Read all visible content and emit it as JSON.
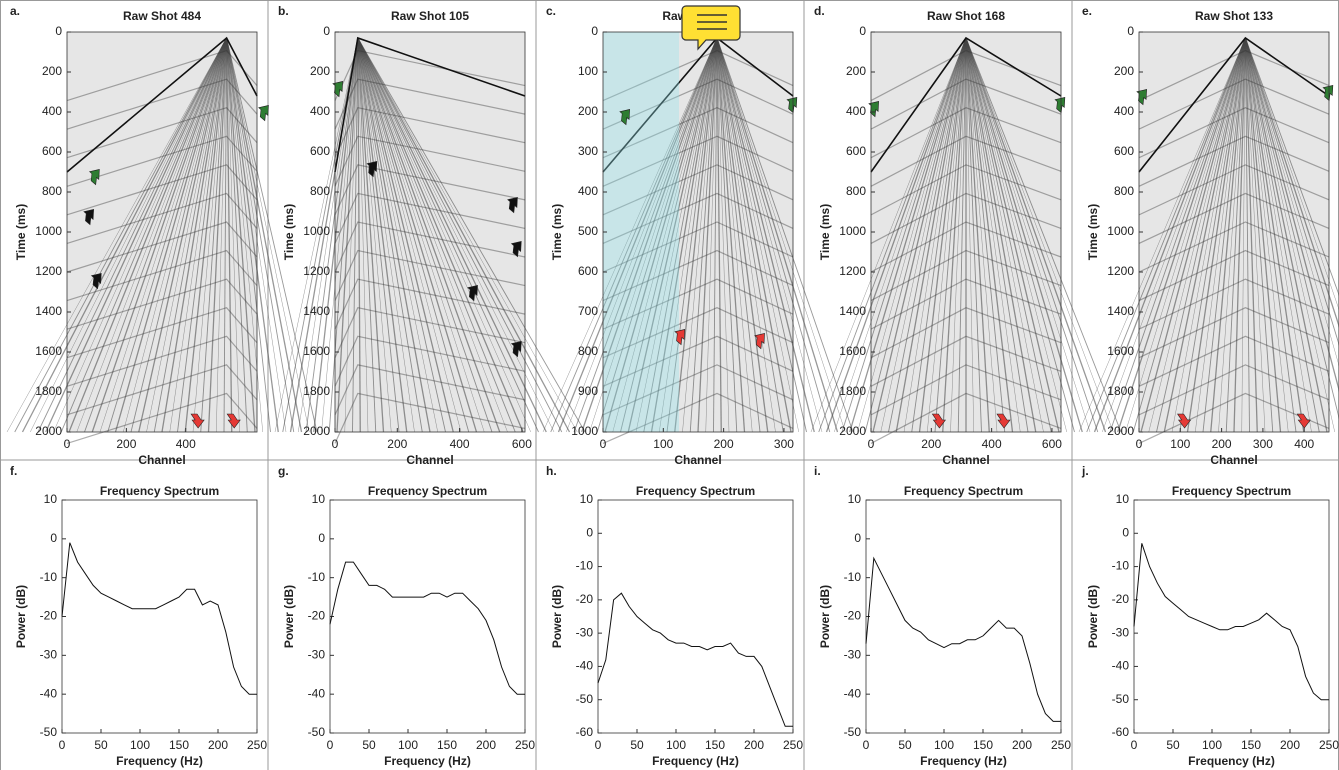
{
  "chart_data": [
    {
      "type": "image",
      "label": "a.",
      "title": "Raw Shot 484",
      "xlabel": "Channel",
      "ylabel": "Time (ms)",
      "xlim": [
        0,
        640
      ],
      "ylim": [
        0,
        2000
      ],
      "xticks": [
        0,
        200,
        400
      ],
      "yticks": [
        0,
        200,
        400,
        600,
        800,
        1000,
        1200,
        1400,
        1600,
        1800,
        2000
      ]
    },
    {
      "type": "image",
      "label": "b.",
      "title": "Raw Shot 105",
      "xlabel": "Channel",
      "ylabel": "Time (ms)",
      "xlim": [
        0,
        610
      ],
      "ylim": [
        0,
        2000
      ],
      "xticks": [
        0,
        200,
        400,
        600
      ],
      "yticks": [
        0,
        200,
        400,
        600,
        800,
        1000,
        1200,
        1400,
        1600,
        1800,
        2000
      ]
    },
    {
      "type": "image",
      "label": "c.",
      "title": "Raw Shot 98",
      "xlabel": "Channel",
      "ylabel": "Time (ms)",
      "xlim": [
        0,
        315
      ],
      "ylim": [
        0,
        1000
      ],
      "xticks": [
        0,
        100,
        200,
        300
      ],
      "yticks": [
        0,
        100,
        200,
        300,
        400,
        500,
        600,
        700,
        800,
        900,
        1000
      ]
    },
    {
      "type": "image",
      "label": "d.",
      "title": "Raw Shot 168",
      "xlabel": "Channel",
      "ylabel": "Time (ms)",
      "xlim": [
        0,
        630
      ],
      "ylim": [
        0,
        2000
      ],
      "xticks": [
        0,
        200,
        400,
        600
      ],
      "yticks": [
        0,
        200,
        400,
        600,
        800,
        1000,
        1200,
        1400,
        1600,
        1800,
        2000
      ]
    },
    {
      "type": "image",
      "label": "e.",
      "title": "Raw Shot 133",
      "xlabel": "Channel",
      "ylabel": "Time (ms)",
      "xlim": [
        0,
        460
      ],
      "ylim": [
        0,
        2000
      ],
      "xticks": [
        0,
        100,
        200,
        300,
        400
      ],
      "yticks": [
        0,
        200,
        400,
        600,
        800,
        1000,
        1200,
        1400,
        1600,
        1800,
        2000
      ]
    },
    {
      "type": "line",
      "label": "f.",
      "title": "Frequency Spectrum",
      "xlabel": "Frequency (Hz)",
      "ylabel": "Power (dB)",
      "xlim": [
        0,
        250
      ],
      "ylim": [
        -50,
        10
      ],
      "xticks": [
        0,
        50,
        100,
        150,
        200,
        250
      ],
      "yticks": [
        -50,
        -40,
        -30,
        -20,
        -10,
        0,
        10
      ],
      "x": [
        0,
        10,
        20,
        30,
        40,
        50,
        60,
        70,
        80,
        90,
        100,
        110,
        120,
        130,
        140,
        150,
        160,
        170,
        180,
        190,
        200,
        210,
        220,
        230,
        240,
        250
      ],
      "values": [
        -20,
        -1,
        -6,
        -9,
        -12,
        -14,
        -15,
        -16,
        -17,
        -18,
        -18,
        -18,
        -18,
        -17,
        -16,
        -15,
        -13,
        -13,
        -17,
        -16,
        -17,
        -24,
        -33,
        -38,
        -40,
        -40
      ]
    },
    {
      "type": "line",
      "label": "g.",
      "title": "Frequency Spectrum",
      "xlabel": "Frequency (Hz)",
      "ylabel": "Power (dB)",
      "xlim": [
        0,
        250
      ],
      "ylim": [
        -50,
        10
      ],
      "xticks": [
        0,
        50,
        100,
        150,
        200,
        250
      ],
      "yticks": [
        -50,
        -40,
        -30,
        -20,
        -10,
        0,
        10
      ],
      "x": [
        0,
        10,
        20,
        30,
        40,
        50,
        60,
        70,
        80,
        90,
        100,
        110,
        120,
        130,
        140,
        150,
        160,
        170,
        180,
        190,
        200,
        210,
        220,
        230,
        240,
        250
      ],
      "values": [
        -22,
        -13,
        -6,
        -6,
        -9,
        -12,
        -12,
        -13,
        -15,
        -15,
        -15,
        -15,
        -15,
        -14,
        -14,
        -15,
        -14,
        -14,
        -16,
        -18,
        -21,
        -26,
        -33,
        -38,
        -40,
        -40
      ]
    },
    {
      "type": "line",
      "label": "h.",
      "title": "Frequency Spectrum",
      "xlabel": "Frequency (Hz)",
      "ylabel": "Power (dB)",
      "xlim": [
        0,
        250
      ],
      "ylim": [
        -60,
        10
      ],
      "xticks": [
        0,
        50,
        100,
        150,
        200,
        250
      ],
      "yticks": [
        -60,
        -50,
        -40,
        -30,
        -20,
        -10,
        0,
        10
      ],
      "x": [
        0,
        10,
        20,
        30,
        40,
        50,
        60,
        70,
        80,
        90,
        100,
        110,
        120,
        130,
        140,
        150,
        160,
        170,
        180,
        190,
        200,
        210,
        220,
        230,
        240,
        250
      ],
      "values": [
        -45,
        -38,
        -20,
        -18,
        -22,
        -25,
        -27,
        -29,
        -30,
        -32,
        -33,
        -33,
        -34,
        -34,
        -35,
        -34,
        -34,
        -33,
        -36,
        -37,
        -37,
        -40,
        -46,
        -52,
        -58,
        -58
      ]
    },
    {
      "type": "line",
      "label": "i.",
      "title": "Frequency Spectrum",
      "xlabel": "Frequency (Hz)",
      "ylabel": "Power (dB)",
      "xlim": [
        0,
        250
      ],
      "ylim": [
        -50,
        10
      ],
      "xticks": [
        0,
        50,
        100,
        150,
        200,
        250
      ],
      "yticks": [
        -50,
        -40,
        -30,
        -20,
        -10,
        0,
        10
      ],
      "x": [
        0,
        10,
        20,
        30,
        40,
        50,
        60,
        70,
        80,
        90,
        100,
        110,
        120,
        130,
        140,
        150,
        160,
        170,
        180,
        190,
        200,
        210,
        220,
        230,
        240,
        250
      ],
      "values": [
        -27,
        -5,
        -9,
        -13,
        -17,
        -21,
        -23,
        -24,
        -26,
        -27,
        -28,
        -27,
        -27,
        -26,
        -26,
        -25,
        -23,
        -21,
        -23,
        -23,
        -25,
        -32,
        -40,
        -45,
        -47,
        -47
      ]
    },
    {
      "type": "line",
      "label": "j.",
      "title": "Frequency Spectrum",
      "xlabel": "Frequency (Hz)",
      "ylabel": "Power (dB)",
      "xlim": [
        0,
        250
      ],
      "ylim": [
        -60,
        10
      ],
      "xticks": [
        0,
        50,
        100,
        150,
        200,
        250
      ],
      "yticks": [
        -60,
        -50,
        -40,
        -30,
        -20,
        -10,
        0,
        10
      ],
      "x": [
        0,
        10,
        20,
        30,
        40,
        50,
        60,
        70,
        80,
        90,
        100,
        110,
        120,
        130,
        140,
        150,
        160,
        170,
        180,
        190,
        200,
        210,
        220,
        230,
        240,
        250
      ],
      "values": [
        -28,
        -3,
        -10,
        -15,
        -19,
        -21,
        -23,
        -25,
        -26,
        -27,
        -28,
        -29,
        -29,
        -28,
        -28,
        -27,
        -26,
        -24,
        -26,
        -28,
        -29,
        -34,
        -43,
        -48,
        -50,
        -50
      ]
    }
  ]
}
